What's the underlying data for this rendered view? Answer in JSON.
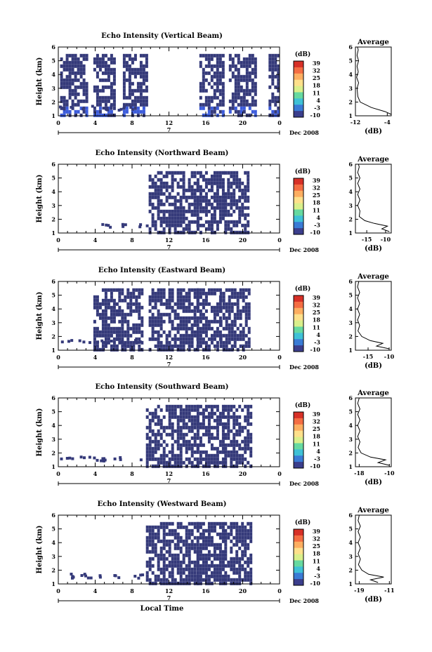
{
  "chart_data": [
    {
      "type": "heatmap",
      "title": "Echo Intensity (Vertical Beam)",
      "ylabel": "Height (km)",
      "x_ticks": [
        "0",
        "4",
        "8",
        "12",
        "16",
        "20",
        "0"
      ],
      "y_ticks": [
        "1",
        "2",
        "3",
        "4",
        "5",
        "6"
      ],
      "xlim": [
        0,
        24
      ],
      "ylim": [
        1,
        6
      ],
      "date_marker": "7",
      "date_label": "Dec 2008",
      "colorbar": {
        "unit": "(dB)",
        "ticks": [
          "39",
          "32",
          "25",
          "18",
          "11",
          "4",
          "-3",
          "-10"
        ]
      },
      "coverage_segments": [
        [
          0.2,
          3.0
        ],
        [
          3.8,
          6.2
        ],
        [
          7.0,
          9.6
        ],
        [
          15.3,
          17.8
        ],
        [
          18.5,
          21.5
        ],
        [
          22.8,
          23.8
        ]
      ],
      "data_top_km": 5.5,
      "average": {
        "title": "Average",
        "xlabel": "(dB)",
        "x_ticks": [
          "-12",
          "-4"
        ],
        "xlim": [
          -12,
          -3
        ],
        "y_ticks": [
          "1",
          "2",
          "3",
          "4",
          "5",
          "6"
        ],
        "ylim": [
          1,
          6
        ],
        "profile": [
          [
            -3.0,
            1.1
          ],
          [
            -4.5,
            1.3
          ],
          [
            -8.0,
            1.6
          ],
          [
            -10.8,
            2.0
          ],
          [
            -11.4,
            2.4
          ],
          [
            -11.6,
            3.0
          ],
          [
            -11.2,
            3.4
          ],
          [
            -11.7,
            3.8
          ],
          [
            -11.3,
            4.2
          ],
          [
            -11.6,
            4.6
          ],
          [
            -11.2,
            5.0
          ],
          [
            -11.6,
            5.4
          ],
          [
            -11.3,
            5.8
          ],
          [
            -11.5,
            6.0
          ]
        ]
      }
    },
    {
      "type": "heatmap",
      "title": "Echo Intensity (Northward Beam)",
      "ylabel": "Height (km)",
      "x_ticks": [
        "0",
        "4",
        "8",
        "12",
        "16",
        "20",
        "0"
      ],
      "y_ticks": [
        "1",
        "2",
        "3",
        "4",
        "5",
        "6"
      ],
      "xlim": [
        0,
        24
      ],
      "ylim": [
        1,
        6
      ],
      "date_marker": "7",
      "date_label": "Dec 2008",
      "colorbar": {
        "unit": "(dB)",
        "ticks": [
          "39",
          "32",
          "25",
          "18",
          "11",
          "4",
          "-3",
          "-10"
        ]
      },
      "coverage_segments": [
        [
          9.8,
          15.0
        ],
        [
          15.0,
          18.0
        ],
        [
          18.0,
          20.5
        ]
      ],
      "data_top_km": 5.5,
      "average": {
        "title": "Average",
        "xlabel": "(dB)",
        "x_ticks": [
          "-15",
          "-10"
        ],
        "xlim": [
          -18,
          -8.5
        ],
        "y_ticks": [
          "1",
          "2",
          "3",
          "4",
          "5",
          "6"
        ],
        "ylim": [
          1,
          6
        ],
        "profile": [
          [
            -9.0,
            1.1
          ],
          [
            -11.0,
            1.3
          ],
          [
            -9.5,
            1.5
          ],
          [
            -13.0,
            1.7
          ],
          [
            -15.5,
            1.9
          ],
          [
            -17.0,
            2.2
          ],
          [
            -16.8,
            2.6
          ],
          [
            -17.4,
            3.0
          ],
          [
            -16.8,
            3.4
          ],
          [
            -17.4,
            3.8
          ],
          [
            -16.8,
            4.2
          ],
          [
            -17.4,
            4.6
          ],
          [
            -16.8,
            5.0
          ],
          [
            -17.4,
            5.4
          ],
          [
            -17.0,
            5.8
          ],
          [
            -17.2,
            6.0
          ]
        ]
      }
    },
    {
      "type": "heatmap",
      "title": "Echo Intensity (Eastward Beam)",
      "ylabel": "Height (km)",
      "x_ticks": [
        "0",
        "4",
        "8",
        "12",
        "16",
        "20",
        "0"
      ],
      "y_ticks": [
        "1",
        "2",
        "3",
        "4",
        "5",
        "6"
      ],
      "xlim": [
        0,
        24
      ],
      "ylim": [
        1,
        6
      ],
      "date_marker": "7",
      "date_label": "Dec 2008",
      "colorbar": {
        "unit": "(dB)",
        "ticks": [
          "39",
          "32",
          "25",
          "18",
          "11",
          "4",
          "-3",
          "-10"
        ]
      },
      "coverage_segments": [
        [
          3.8,
          6.5
        ],
        [
          6.5,
          9.0
        ],
        [
          9.8,
          15.0
        ],
        [
          15.0,
          17.5
        ],
        [
          17.5,
          20.8
        ]
      ],
      "data_top_km": 5.5,
      "average": {
        "title": "Average",
        "xlabel": "(dB)",
        "x_ticks": [
          "-15",
          "-10"
        ],
        "xlim": [
          -18,
          -9.5
        ],
        "y_ticks": [
          "1",
          "2",
          "3",
          "4",
          "5",
          "6"
        ],
        "ylim": [
          1,
          6
        ],
        "profile": [
          [
            -10.0,
            1.1
          ],
          [
            -13.0,
            1.3
          ],
          [
            -11.5,
            1.5
          ],
          [
            -14.5,
            1.7
          ],
          [
            -16.5,
            2.0
          ],
          [
            -17.4,
            2.4
          ],
          [
            -17.0,
            2.8
          ],
          [
            -17.5,
            3.2
          ],
          [
            -17.0,
            3.6
          ],
          [
            -17.5,
            4.0
          ],
          [
            -17.0,
            4.4
          ],
          [
            -17.5,
            4.8
          ],
          [
            -17.0,
            5.2
          ],
          [
            -17.5,
            5.6
          ],
          [
            -17.2,
            6.0
          ]
        ]
      }
    },
    {
      "type": "heatmap",
      "title": "Echo Intensity (Southward Beam)",
      "ylabel": "Height (km)",
      "x_ticks": [
        "0",
        "4",
        "8",
        "12",
        "16",
        "20",
        "0"
      ],
      "y_ticks": [
        "1",
        "2",
        "3",
        "4",
        "5",
        "6"
      ],
      "xlim": [
        0,
        24
      ],
      "ylim": [
        1,
        6
      ],
      "date_marker": "7",
      "date_label": "Dec 2008",
      "colorbar": {
        "unit": "(dB)",
        "ticks": [
          "39",
          "32",
          "25",
          "18",
          "11",
          "4",
          "-3",
          "-10"
        ]
      },
      "coverage_segments": [
        [
          9.5,
          15.0
        ],
        [
          15.0,
          18.0
        ],
        [
          18.0,
          20.8
        ]
      ],
      "data_top_km": 5.5,
      "average": {
        "title": "Average",
        "xlabel": "(dB)",
        "x_ticks": [
          "-18",
          "-10"
        ],
        "xlim": [
          -19,
          -9.5
        ],
        "y_ticks": [
          "1",
          "2",
          "3",
          "4",
          "5",
          "6"
        ],
        "ylim": [
          1,
          6
        ],
        "profile": [
          [
            -10.0,
            1.1
          ],
          [
            -13.0,
            1.3
          ],
          [
            -11.0,
            1.5
          ],
          [
            -15.0,
            1.7
          ],
          [
            -17.5,
            2.0
          ],
          [
            -18.3,
            2.4
          ],
          [
            -17.8,
            2.8
          ],
          [
            -18.4,
            3.2
          ],
          [
            -17.8,
            3.6
          ],
          [
            -18.4,
            4.0
          ],
          [
            -17.8,
            4.4
          ],
          [
            -18.4,
            4.8
          ],
          [
            -17.8,
            5.2
          ],
          [
            -18.4,
            5.6
          ],
          [
            -18.0,
            6.0
          ]
        ]
      }
    },
    {
      "type": "heatmap",
      "title": "Echo Intensity (Westward Beam)",
      "ylabel": "Height (km)",
      "xlabel": "Local Time",
      "x_ticks": [
        "0",
        "4",
        "8",
        "12",
        "16",
        "20",
        "0"
      ],
      "y_ticks": [
        "1",
        "2",
        "3",
        "4",
        "5",
        "6"
      ],
      "xlim": [
        0,
        24
      ],
      "ylim": [
        1,
        6
      ],
      "date_marker": "7",
      "date_label": "Dec 2008",
      "colorbar": {
        "unit": "(dB)",
        "ticks": [
          "39",
          "32",
          "25",
          "18",
          "11",
          "4",
          "-3",
          "-10"
        ]
      },
      "coverage_segments": [
        [
          9.5,
          15.0
        ],
        [
          15.0,
          18.0
        ],
        [
          18.0,
          20.8
        ]
      ],
      "data_top_km": 5.5,
      "average": {
        "title": "Average",
        "xlabel": "(dB)",
        "x_ticks": [
          "-19",
          "-11"
        ],
        "xlim": [
          -20,
          -10.5
        ],
        "y_ticks": [
          "1",
          "2",
          "3",
          "4",
          "5",
          "6"
        ],
        "ylim": [
          1,
          6
        ],
        "profile": [
          [
            -14.0,
            1.1
          ],
          [
            -16.0,
            1.3
          ],
          [
            -12.5,
            1.5
          ],
          [
            -16.5,
            1.7
          ],
          [
            -18.3,
            2.0
          ],
          [
            -19.2,
            2.4
          ],
          [
            -18.7,
            2.8
          ],
          [
            -19.3,
            3.2
          ],
          [
            -18.7,
            3.6
          ],
          [
            -19.3,
            4.0
          ],
          [
            -18.7,
            4.4
          ],
          [
            -19.3,
            4.8
          ],
          [
            -18.7,
            5.2
          ],
          [
            -19.3,
            5.6
          ],
          [
            -19.0,
            6.0
          ]
        ]
      }
    }
  ]
}
